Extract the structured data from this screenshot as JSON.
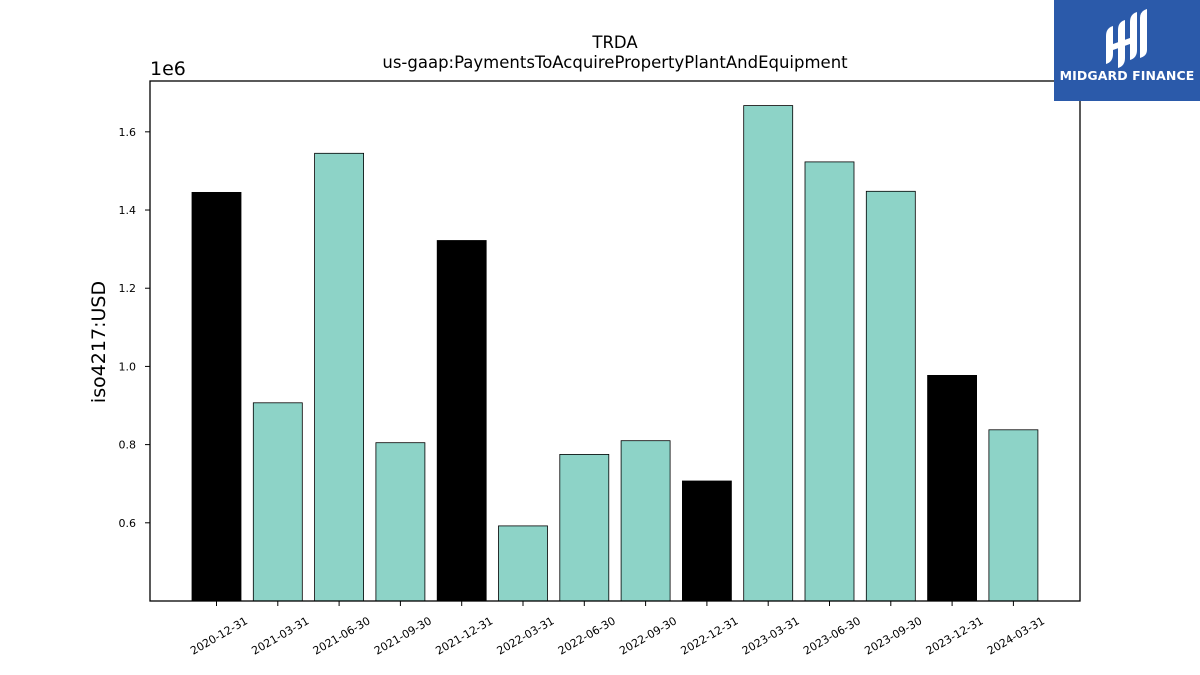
{
  "chart_data": {
    "type": "bar",
    "title": "TRDA",
    "subtitle": "us-gaap:PaymentsToAcquirePropertyPlantAndEquipment",
    "xlabel": "",
    "ylabel": "iso4217:USD",
    "y_scale_label": "1e6",
    "ylim": [
      400000,
      1730000
    ],
    "yticks": [
      0.6,
      0.8,
      1.0,
      1.2,
      1.4,
      1.6
    ],
    "grid": false,
    "categories": [
      "2020-12-31",
      "2021-03-31",
      "2021-06-30",
      "2021-09-30",
      "2021-12-31",
      "2022-03-31",
      "2022-06-30",
      "2022-09-30",
      "2022-12-31",
      "2023-03-31",
      "2023-06-30",
      "2023-09-30",
      "2023-12-31",
      "2024-03-31"
    ],
    "values": [
      1445000,
      907000,
      1545000,
      805000,
      1322000,
      592000,
      775000,
      810000,
      707000,
      1667000,
      1523000,
      1448000,
      977000,
      838000
    ],
    "bar_colors": [
      "#000000",
      "#8dd3c7",
      "#8dd3c7",
      "#8dd3c7",
      "#000000",
      "#8dd3c7",
      "#8dd3c7",
      "#8dd3c7",
      "#000000",
      "#8dd3c7",
      "#8dd3c7",
      "#8dd3c7",
      "#000000",
      "#8dd3c7"
    ]
  },
  "logo": {
    "text": "MIDGARD FINANCE"
  },
  "colors": {
    "logo_bg": "#2b5aaa",
    "bar_teal": "#8dd3c7",
    "bar_black": "#000000"
  }
}
